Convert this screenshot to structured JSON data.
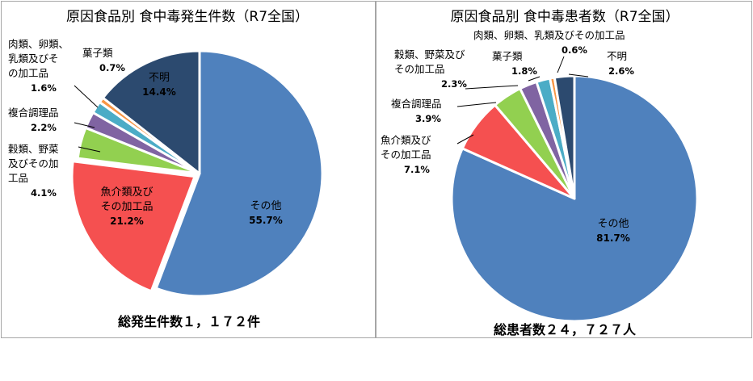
{
  "chart_data": [
    {
      "type": "pie",
      "title": "原因食品別 食中毒発生件数（R7全国）",
      "total_label": "総発生件数１，１７２件",
      "slices": [
        {
          "name": "その他",
          "value": 55.7,
          "pct_label": "55.7%",
          "color": "#4f81bd",
          "label_lines": [
            "その他"
          ]
        },
        {
          "name": "魚介類及びその加工品",
          "value": 21.2,
          "pct_label": "21.2%",
          "color": "#f55050",
          "label_lines": [
            "魚介類及び",
            "その加工品"
          ]
        },
        {
          "name": "穀類、野菜及びその加工品",
          "value": 4.1,
          "pct_label": "4.1%",
          "color": "#92d050",
          "label_lines": [
            "穀類、野菜",
            "及びその加",
            "工品"
          ]
        },
        {
          "name": "複合調理品",
          "value": 2.2,
          "pct_label": "2.2%",
          "color": "#8064a2",
          "label_lines": [
            "複合調理品"
          ]
        },
        {
          "name": "肉類、卵類、乳類及びその加工品",
          "value": 1.6,
          "pct_label": "1.6%",
          "color": "#4bacc6",
          "label_lines": [
            "肉類、卵類、",
            "乳類及びそ",
            "の加工品"
          ]
        },
        {
          "name": "菓子類",
          "value": 0.7,
          "pct_label": "0.7%",
          "color": "#f79646",
          "label_lines": [
            "菓子類"
          ]
        },
        {
          "name": "不明",
          "value": 14.4,
          "pct_label": "14.4%",
          "color": "#2c4a6f",
          "label_lines": [
            "不明"
          ]
        }
      ]
    },
    {
      "type": "pie",
      "title": "原因食品別 食中毒患者数（R7全国）",
      "total_label": "総患者数２４，７２７人",
      "slices": [
        {
          "name": "その他",
          "value": 81.7,
          "pct_label": "81.7%",
          "color": "#4f81bd",
          "label_lines": [
            "その他"
          ]
        },
        {
          "name": "魚介類及びその加工品",
          "value": 7.1,
          "pct_label": "7.1%",
          "color": "#f55050",
          "label_lines": [
            "魚介類及び",
            "その加工品"
          ]
        },
        {
          "name": "複合調理品",
          "value": 3.9,
          "pct_label": "3.9%",
          "color": "#92d050",
          "label_lines": [
            "複合調理品"
          ]
        },
        {
          "name": "穀類、野菜及びその加工品",
          "value": 2.3,
          "pct_label": "2.3%",
          "color": "#8064a2",
          "label_lines": [
            "穀類、野菜及び",
            "その加工品"
          ]
        },
        {
          "name": "菓子類",
          "value": 1.8,
          "pct_label": "1.8%",
          "color": "#4bacc6",
          "label_lines": [
            "菓子類"
          ]
        },
        {
          "name": "肉類、卵類、乳類及びその加工品",
          "value": 0.6,
          "pct_label": "0.6%",
          "color": "#f79646",
          "label_lines": [
            "肉類、卵類、乳類及びその加工品"
          ]
        },
        {
          "name": "不明",
          "value": 2.6,
          "pct_label": "2.6%",
          "color": "#2c4a6f",
          "label_lines": [
            "不明"
          ]
        }
      ]
    }
  ]
}
